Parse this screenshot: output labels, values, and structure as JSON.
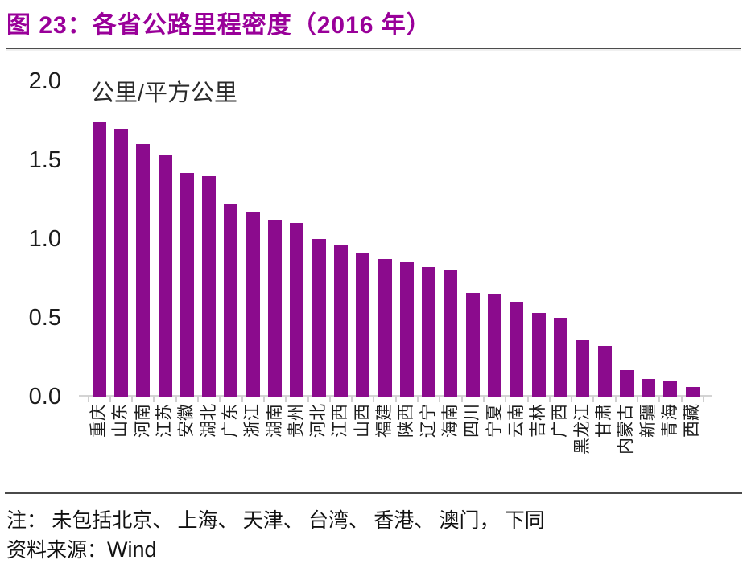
{
  "figure": {
    "title": "图 23：各省公路里程密度（2016 年）",
    "note": "注： 未包括北京、 上海、 天津、 台湾、 香港、 澳门， 下同",
    "source_label": "资料来源：",
    "source_value": "Wind"
  },
  "colors": {
    "bar": "#8B0B8D",
    "title": "#990099",
    "axis": "#D4D4D4",
    "tick": "#CFCFCF",
    "text": "#1C1C1C",
    "rule": "#4A4A4A"
  },
  "chart_data": {
    "type": "bar",
    "title": "各省公路里程密度（2016 年）",
    "unit_label": "公里/平方公里",
    "xlabel": "",
    "ylabel": "公里/平方公里",
    "ylim": [
      0,
      2.0
    ],
    "yticks": [
      0.0,
      0.5,
      1.0,
      1.5,
      2.0
    ],
    "grid": false,
    "legend": "none",
    "categories": [
      "重庆",
      "山东",
      "河南",
      "江苏",
      "安徽",
      "湖北",
      "广东",
      "浙江",
      "湖南",
      "贵州",
      "河北",
      "江西",
      "山西",
      "福建",
      "陕西",
      "辽宁",
      "海南",
      "四川",
      "宁夏",
      "云南",
      "吉林",
      "广西",
      "黑龙江",
      "甘肃",
      "内蒙古",
      "新疆",
      "青海",
      "西藏"
    ],
    "values": [
      1.74,
      1.7,
      1.6,
      1.53,
      1.42,
      1.4,
      1.22,
      1.17,
      1.12,
      1.1,
      1.0,
      0.96,
      0.91,
      0.87,
      0.85,
      0.82,
      0.8,
      0.66,
      0.65,
      0.6,
      0.53,
      0.5,
      0.36,
      0.32,
      0.17,
      0.11,
      0.1,
      0.06
    ]
  }
}
